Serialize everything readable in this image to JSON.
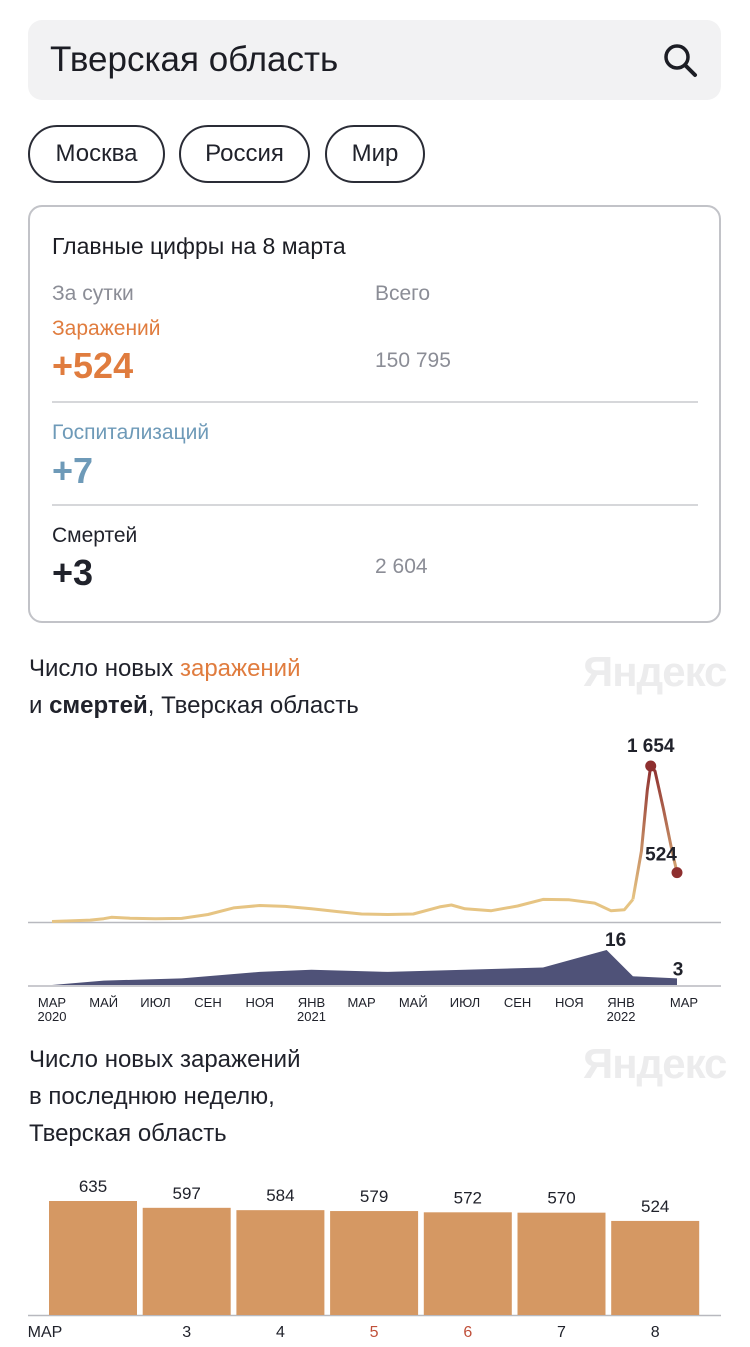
{
  "search": {
    "value": "Тверская область"
  },
  "regions": [
    "Москва",
    "Россия",
    "Мир"
  ],
  "summary": {
    "title": "Главные цифры на 8 марта",
    "col_day": "За сутки",
    "col_total": "Всего",
    "infections": {
      "label": "Заражений",
      "day": "+524",
      "total": "150 795"
    },
    "hospital": {
      "label": "Госпитализаций",
      "day": "+7"
    },
    "deaths": {
      "label": "Смертей",
      "day": "+3",
      "total": "2 604"
    }
  },
  "chart1": {
    "title_a": "Число новых ",
    "title_b": "заражений",
    "title_c": "и ",
    "title_d": "смертей",
    "title_e": ", Тверская область",
    "watermark": "Яндекс"
  },
  "chart2": {
    "title_lines": [
      "Число новых заражений",
      "в последнюю неделю,",
      "Тверская область"
    ],
    "watermark": "Яндекс"
  },
  "colors": {
    "accent": "#e07c3e",
    "hospital": "#6e9ab8",
    "bar": "#d59863",
    "trend": "#e6c483",
    "peak": "#8e2f2f",
    "deaths": "#4f5278"
  },
  "chart_data": [
    {
      "type": "line",
      "series": [
        {
          "name": "заражений",
          "x": [
            "2020-03-01",
            "2020-04-15",
            "2020-05-01",
            "2020-05-10",
            "2020-06-01",
            "2020-07-01",
            "2020-08-01",
            "2020-09-01",
            "2020-10-01",
            "2020-11-01",
            "2020-12-01",
            "2021-01-01",
            "2021-02-01",
            "2021-03-01",
            "2021-04-01",
            "2021-05-01",
            "2021-06-01",
            "2021-06-15",
            "2021-07-01",
            "2021-08-01",
            "2021-09-01",
            "2021-10-01",
            "2021-11-01",
            "2021-12-01",
            "2021-12-20",
            "2022-01-05",
            "2022-01-15",
            "2022-01-25",
            "2022-02-01",
            "2022-02-05",
            "2022-02-10",
            "2022-02-20",
            "2022-03-01",
            "2022-03-08"
          ],
          "y": [
            5,
            20,
            35,
            50,
            40,
            35,
            38,
            80,
            150,
            175,
            165,
            140,
            110,
            85,
            80,
            85,
            160,
            180,
            140,
            120,
            170,
            240,
            235,
            200,
            120,
            130,
            240,
            750,
            1400,
            1654,
            1600,
            1200,
            800,
            524
          ]
        },
        {
          "name": "смертей",
          "x": [
            "2020-03-01",
            "2020-05-01",
            "2020-08-01",
            "2020-11-01",
            "2021-01-01",
            "2021-04-01",
            "2021-07-01",
            "2021-10-01",
            "2021-12-15",
            "2022-01-15",
            "2022-03-08"
          ],
          "y": [
            0,
            2,
            3,
            6,
            7,
            6,
            7,
            8,
            16,
            4,
            3
          ]
        }
      ],
      "annotations": [
        "1 654",
        "524",
        "16",
        "3"
      ],
      "x_ticks": [
        "МАР",
        "МАЙ",
        "ИЮЛ",
        "СЕН",
        "НОЯ",
        "ЯНВ",
        "МАР",
        "МАЙ",
        "ИЮЛ",
        "СЕН",
        "НОЯ",
        "ЯНВ",
        "МАР"
      ],
      "x_subticks": [
        "2020",
        "",
        "",
        "",
        "",
        "2021",
        "",
        "",
        "",
        "",
        "",
        "2022",
        ""
      ]
    },
    {
      "type": "bar",
      "categories": [
        "МАР",
        "3",
        "4",
        "5",
        "6",
        "7",
        "8"
      ],
      "values": [
        635,
        597,
        584,
        579,
        572,
        570,
        524
      ],
      "category_label_colors": [
        "#20222b",
        "#20222b",
        "#20222b",
        "#c0503a",
        "#c0503a",
        "#20222b",
        "#20222b"
      ]
    }
  ]
}
